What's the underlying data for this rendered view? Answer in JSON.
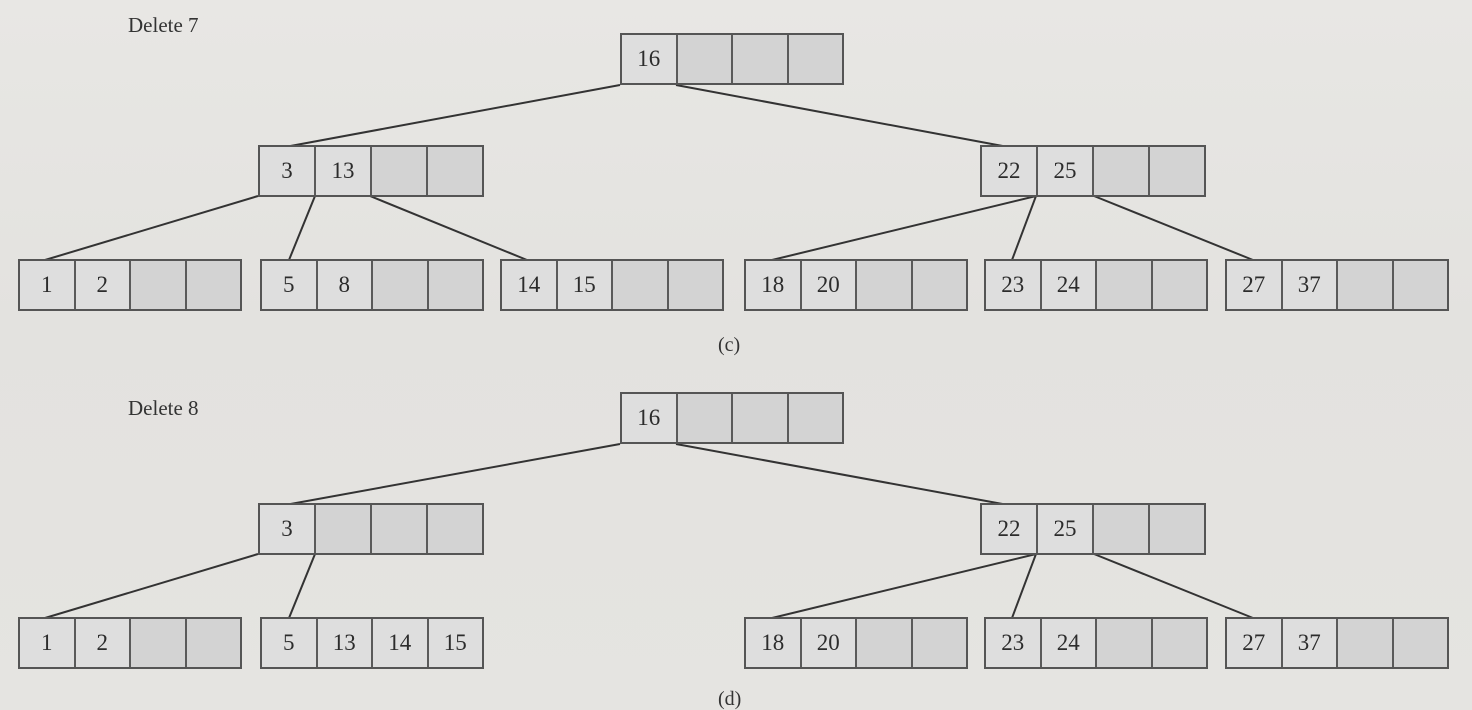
{
  "diagrams": [
    {
      "step_label": "Delete 7",
      "caption": "(c)",
      "root": [
        "16",
        "",
        "",
        ""
      ],
      "internal": [
        [
          "3",
          "13",
          "",
          ""
        ],
        [
          "22",
          "25",
          "",
          ""
        ]
      ],
      "leaves": [
        [
          "1",
          "2",
          "",
          ""
        ],
        [
          "5",
          "8",
          "",
          ""
        ],
        [
          "14",
          "15",
          "",
          ""
        ],
        [
          "18",
          "20",
          "",
          ""
        ],
        [
          "23",
          "24",
          "",
          ""
        ],
        [
          "27",
          "37",
          "",
          ""
        ]
      ]
    },
    {
      "step_label": "Delete 8",
      "caption": "(d)",
      "root": [
        "16",
        "",
        "",
        ""
      ],
      "internal": [
        [
          "3",
          "",
          "",
          ""
        ],
        [
          "22",
          "25",
          "",
          ""
        ]
      ],
      "leaves": [
        [
          "1",
          "2",
          "",
          ""
        ],
        [
          "5",
          "13",
          "14",
          "15"
        ],
        [
          "18",
          "20",
          "",
          ""
        ],
        [
          "23",
          "24",
          "",
          ""
        ],
        [
          "27",
          "37",
          "",
          ""
        ]
      ]
    }
  ]
}
